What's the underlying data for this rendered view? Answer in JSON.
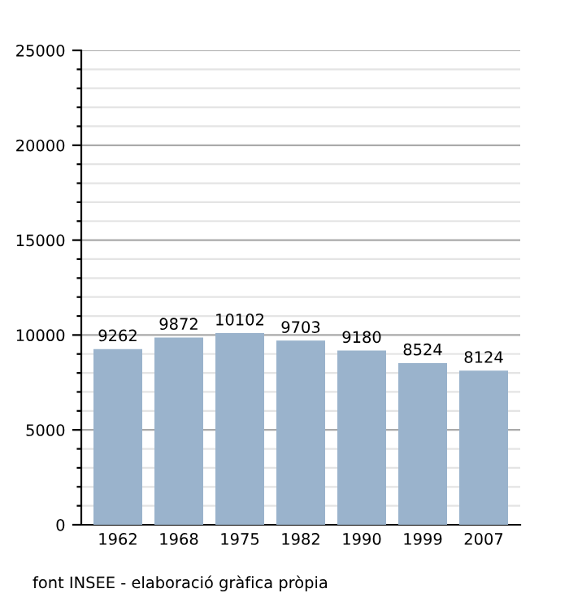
{
  "chart_data": {
    "type": "bar",
    "categories": [
      "1962",
      "1968",
      "1975",
      "1982",
      "1990",
      "1999",
      "2007"
    ],
    "values": [
      9262,
      9872,
      10102,
      9703,
      9180,
      8524,
      8124
    ],
    "color": "#9ab3cc",
    "data_labels": true,
    "grid": "y",
    "ylim": [
      0,
      25000
    ],
    "yticks": [
      0,
      {
        "value": 1000,
        "label": null
      },
      {
        "value": 2000,
        "label": null
      },
      {
        "value": 3000,
        "label": null
      },
      {
        "value": 4000,
        "label": null
      },
      5000,
      {
        "value": 6000,
        "label": null
      },
      {
        "value": 7000,
        "label": null
      },
      {
        "value": 8000,
        "label": null
      },
      {
        "value": 9000,
        "label": null
      },
      10000,
      {
        "value": 11000,
        "label": null
      },
      {
        "value": 12000,
        "label": null
      },
      {
        "value": 13000,
        "label": null
      },
      {
        "value": 14000,
        "label": null
      },
      15000,
      {
        "value": 16000,
        "label": null
      },
      {
        "value": 17000,
        "label": null
      },
      {
        "value": 18000,
        "label": null
      },
      {
        "value": 19000,
        "label": null
      },
      20000,
      {
        "value": 21000,
        "label": null
      },
      {
        "value": 22000,
        "label": null
      },
      {
        "value": 23000,
        "label": null
      },
      {
        "value": 24000,
        "label": null
      },
      25000
    ],
    "annotations": [
      "font INSEE - elaboració gràfica pròpia"
    ]
  }
}
